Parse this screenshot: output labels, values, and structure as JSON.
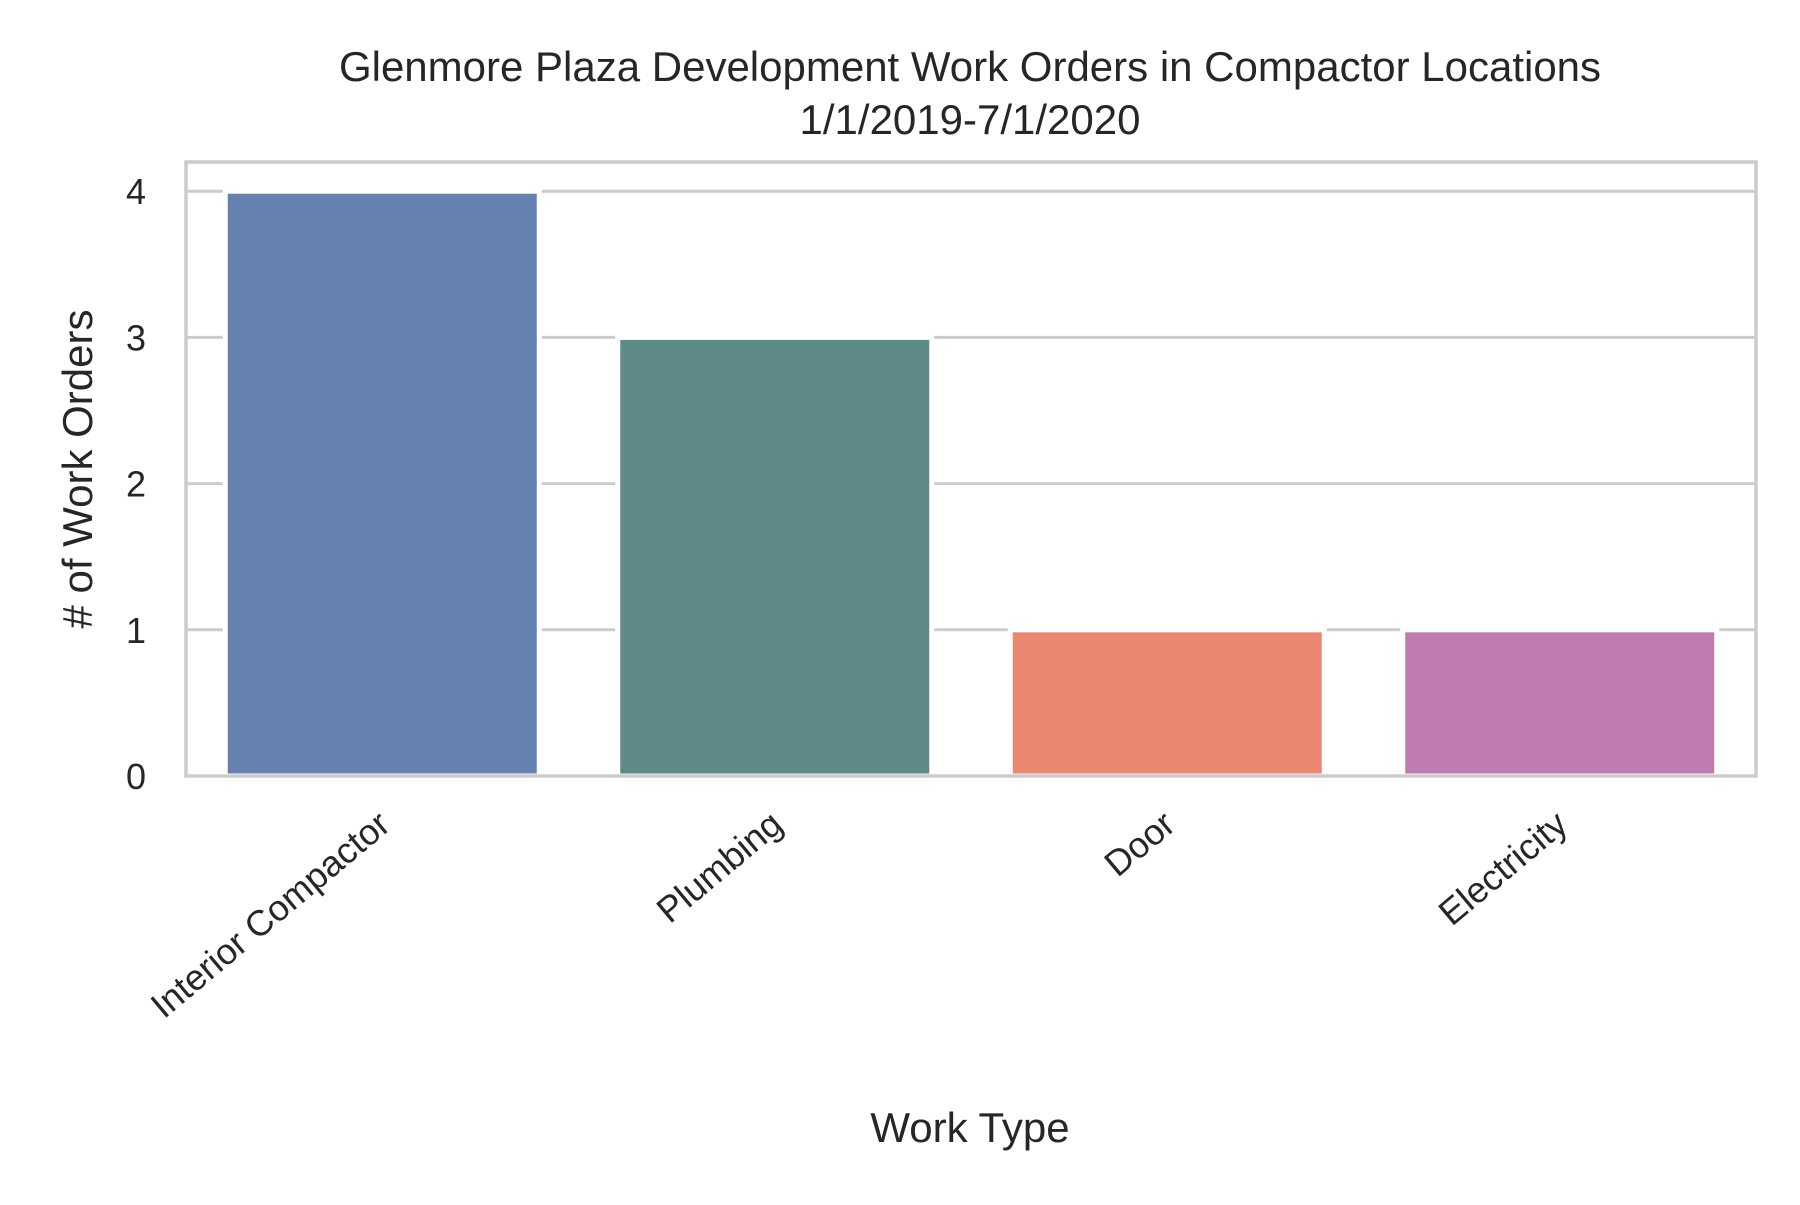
{
  "chart_data": {
    "type": "bar",
    "title": "Glenmore Plaza Development Work Orders in Compactor Locations",
    "subtitle": "1/1/2019-7/1/2020",
    "xlabel": "Work Type",
    "ylabel": "# of Work Orders",
    "categories": [
      "Interior Compactor",
      "Plumbing",
      "Door",
      "Electricity"
    ],
    "values": [
      4,
      3,
      1,
      1
    ],
    "colors": [
      "#6581b0",
      "#5e8a87",
      "#e98771",
      "#bd7bae"
    ],
    "ylim": [
      0,
      4.2
    ],
    "yticks": [
      "0",
      "1",
      "2",
      "3",
      "4"
    ],
    "grid": true,
    "legend": "none",
    "style": {
      "background": "#ffffff",
      "grid_color": "#cccccc",
      "frame_color": "#cccccc",
      "text_color": "#262626"
    }
  }
}
